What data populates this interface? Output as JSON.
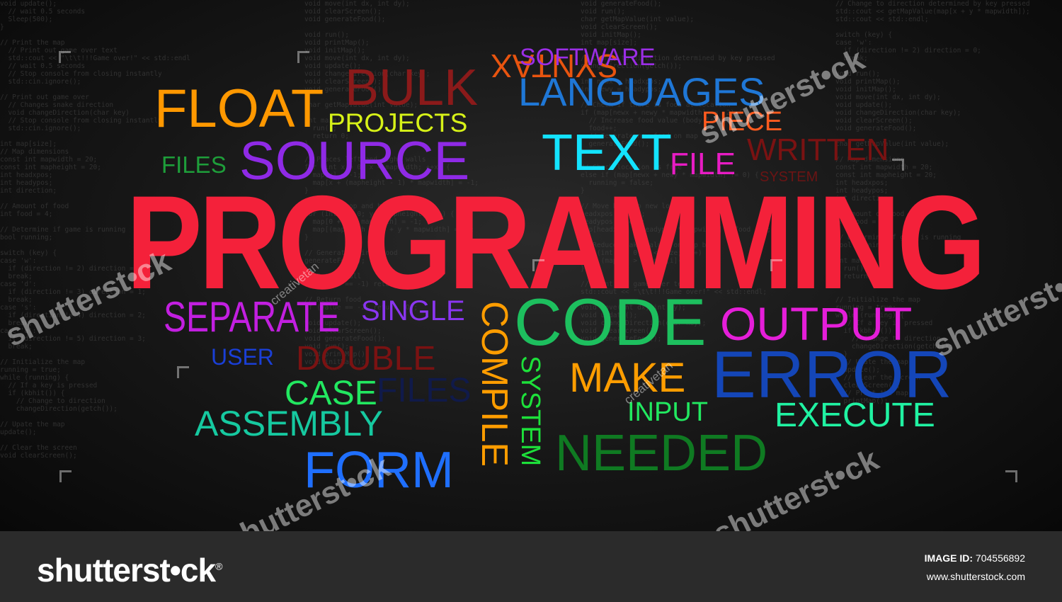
{
  "words": [
    {
      "text": "PROGRAMMING",
      "color": "#f4213a"
    },
    {
      "text": "FLOAT",
      "color": "#ff9800"
    },
    {
      "text": "BULK",
      "color": "#8b1a1a"
    },
    {
      "text": "SYNTAX",
      "color": "#e8540f"
    },
    {
      "text": "SOFTWARE",
      "color": "#9b2ee6"
    },
    {
      "text": "LANGUAGES",
      "color": "#1f77d6"
    },
    {
      "text": "PROJECTS",
      "color": "#d7f218"
    },
    {
      "text": "PIECE",
      "color": "#ff5b1f"
    },
    {
      "text": "SOURCE",
      "color": "#8f2ae6"
    },
    {
      "text": "TEXT",
      "color": "#13e3ff"
    },
    {
      "text": "FILE",
      "color": "#e81cc4"
    },
    {
      "text": "WRITTEN",
      "color": "#7a1212"
    },
    {
      "text": "SYSTEM",
      "color": "#6b1414"
    },
    {
      "text": "FILES",
      "color": "#1e9e3a"
    },
    {
      "text": "SEPARATE",
      "color": "#c21fe0"
    },
    {
      "text": "SINGLE",
      "color": "#8a36f0"
    },
    {
      "text": "COMPILE",
      "color": "#ff9d00"
    },
    {
      "text": "CODE",
      "color": "#1dbf5e"
    },
    {
      "text": "OUTPUT",
      "color": "#e51ed9"
    },
    {
      "text": "USER",
      "color": "#1a3fd6"
    },
    {
      "text": "DOUBLE",
      "color": "#7a1212"
    },
    {
      "text": "SYSTEM",
      "color": "#1de03a"
    },
    {
      "text": "MAKE",
      "color": "#ff9d00"
    },
    {
      "text": "ERROR",
      "color": "#1446b8"
    },
    {
      "text": "CASE",
      "color": "#22e860"
    },
    {
      "text": "FILES",
      "color": "#101a4a"
    },
    {
      "text": "INPUT",
      "color": "#22e860"
    },
    {
      "text": "EXECUTE",
      "color": "#20f2a2"
    },
    {
      "text": "ASSEMBLY",
      "color": "#16c9a0"
    },
    {
      "text": "FORM",
      "color": "#1f6fff"
    },
    {
      "text": "NEEDED",
      "color": "#0f7a22"
    }
  ],
  "watermark": {
    "brand": "shutterst•ck",
    "contributor": "creativetan"
  },
  "footer": {
    "logo": "shutterst•ck",
    "logo_mark": "®",
    "image_id_label": "IMAGE ID:",
    "image_id": "704556892",
    "url": "www.shutterstock.com"
  },
  "code_background": [
    "void update();\n  // wait 0.5 seconds\n  Sleep(500);\n}\n\n// Print the map\n  // Print out game over text\n  std::cout << \"\\t\\t!!!Game over!\" << std::endl\n  // wait 0.5 seconds\n  // Stop console from closing instantly\n  std::cin.ignore();\n\n// Print out game over\n  // Changes snake direction\n  void changeDirection(char key)\n  // Stop console from closing instantly\n  std::cin.ignore();\n\nint map[size];\n// Map dimensions\nconst int mapwidth = 20;\nconst int mapheight = 20;\nint headxpos;\nint headypos;\nint direction;\n\n// Amount of food\nint food = 4;\n\n// Determine if game is running\nbool running;\n\nswitch (key) {\ncase 'w':\n  if (direction != 2) direction = 0;\n  break;\ncase 'd':\n  if (direction != 3) direction = 1;\n  break;\ncase 's':\n  if (direction != 4) direction = 2;\n  break;\ncase 'a':\n  if (direction != 5) direction = 3;\n  break;\n\n// Initialize the map\nrunning = true;\nwhile (running) {\n  // If a key is pressed\n  if (kbhit()) {\n    // Change to direction\n    changeDirection(getch());\n\n// Upate the map\nupdate();\n\n// Clear the screen\nvoid clearScreen();",
    "void move(int dx, int dy);\nvoid clearScreen();\nvoid generateFood();\n\nvoid run();\nvoid printMap();\nvoid initMap();\nvoid move(int dx, int dy);\nvoid update();\nvoid changeDirection(char key);\nvoid clearScreen();\nvoid generateFood();\n\nchar getMapValue(int value);\n\nint main() {\n  run();\n  return 0;\n}\n\n// Places left and right walls\nfor (int x = 0; x < mapwidth; ++x) {\n  map[x] = -1;\n  map[x + (mapheight - 1) * mapwidth] = -1;\n}\n\n// Places top and bottom walls\nfor (int y = 0; y < mapheight; y++) {\n  map[0 + y * mapwidth] = -1;\n  map[(mapwidth - 1) + y * mapwidth] = -1;\n}\n\n// Generates first food\ngenerateFood();\n\n// Return wall\nif (value == -1) return 'X';\n\n// Return food\nif (value == -2) return 'O';\n\nvoid update();\nvoid clearScreen();\nvoid generateFood();\nvoid run();\nvoid printMap();\nvoid initMap();",
    "void generateFood();\nvoid run();\nchar getMapValue(int value);\nvoid clearScreen();\nvoid initMap();\nint map[size];\n\n// Change to direction determined by key pressed\nchangeDirection(getch());\n\nint newx = headxpos;\nint newy = headypos;\n\n// Check if there is food at location\nif (map[newx + newy * mapwidth] == -2) {\n  // Increase food value (body length)\n  food++;\n  // Generate new food on map\n  generateFood();\n}\n\n// Check location is free\nelse if (map[newx + newy * mapwidth] != 0) {\n  running = false;\n}\n\n// Move head to new location\nheadxpos = newx;\nheadypos = newy;\nmap[headxpos + headypos * mapwidth] = food + 1;\n\n// Reduce snake values on map by 1\nfor (int i = 0; i < size; i++) {\n  if (map[i] > 0) map[i]--;\n}\n\n// Print out game over text\nstd::cout << \"\\t\\t!!!Game over!\" << std::endl;\n\nvoid move(int dx, int dy);\nvoid update();\nvoid changeDirection(char key);\nvoid clearScreen();\nvoid generateFood();",
    "// Change to direction determined by key pressed\nstd::cout << getMapValue(map[x + y * mapwidth]);\nstd::cout << std::endl;\n\nswitch (key) {\ncase 'w':\n  if (direction != 2) direction = 0;\n  break;\n\nvoid run();\nvoid printMap();\nvoid initMap();\nvoid move(int dx, int dy);\nvoid update();\nvoid changeDirection(char key);\nvoid clearScreen();\nvoid generateFood();\n\nchar getMapValue(int value);\n\n// Map dimensions\nconst int mapwidth = 20;\nconst int mapheight = 20;\nint headxpos;\nint headypos;\nint direction;\n\n// Amount of food\nint food = 4;\n\n// Determine if game is running\nbool running;\n\nint main() {\n  run();\n  return 0;\n}\n\n// Initialize the map\nrunning = true;\nwhile (running) {\n  // If a key is pressed\n  if (kbhit()) {\n    // Change to direction\n    changeDirection(getch());\n  }\n  // Upate the map\n  update();\n  // Clear the screen\n  clearScreen();\n  // Print the map\n  printMap();"
  ]
}
